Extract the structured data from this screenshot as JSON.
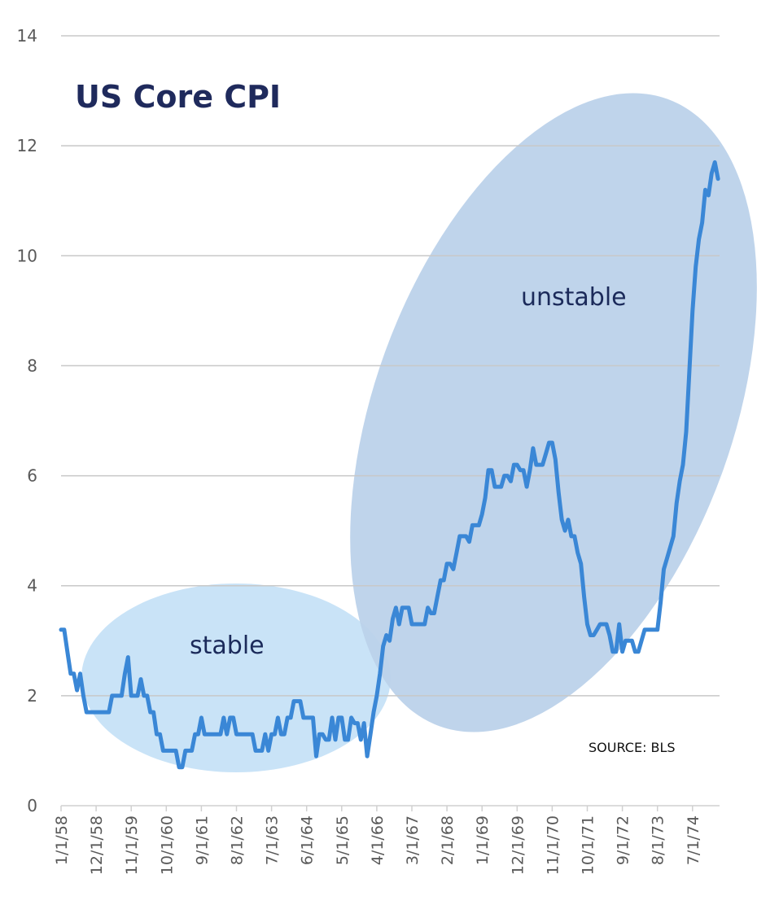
{
  "chart_data": {
    "type": "line",
    "title": "US Core CPI",
    "xlabel": "",
    "ylabel": "",
    "ylim": [
      0,
      14
    ],
    "yticks": [
      0,
      2,
      4,
      6,
      8,
      10,
      12,
      14
    ],
    "grid": true,
    "legend": "none",
    "x_start": "1/1/58",
    "x_frequency": "monthly",
    "x_tick_labels": [
      "1/1/58",
      "12/1/58",
      "11/1/59",
      "10/1/60",
      "9/1/61",
      "8/1/62",
      "7/1/63",
      "6/1/64",
      "5/1/65",
      "4/1/66",
      "3/1/67",
      "2/1/68",
      "1/1/69",
      "12/1/69",
      "11/1/70",
      "10/1/71",
      "9/1/72",
      "8/1/73",
      "7/1/74"
    ],
    "x_tick_interval_months": 11,
    "series": [
      {
        "name": "US Core CPI",
        "color": "#3a87d6",
        "values": [
          3.2,
          3.2,
          2.8,
          2.4,
          2.4,
          2.1,
          2.4,
          2.0,
          1.7,
          1.7,
          1.7,
          1.7,
          1.7,
          1.7,
          1.7,
          1.7,
          2.0,
          2.0,
          2.0,
          2.0,
          2.4,
          2.7,
          2.0,
          2.0,
          2.0,
          2.3,
          2.0,
          2.0,
          1.7,
          1.7,
          1.3,
          1.3,
          1.0,
          1.0,
          1.0,
          1.0,
          1.0,
          0.7,
          0.7,
          1.0,
          1.0,
          1.0,
          1.3,
          1.3,
          1.6,
          1.3,
          1.3,
          1.3,
          1.3,
          1.3,
          1.3,
          1.6,
          1.3,
          1.6,
          1.6,
          1.3,
          1.3,
          1.3,
          1.3,
          1.3,
          1.3,
          1.0,
          1.0,
          1.0,
          1.3,
          1.0,
          1.3,
          1.3,
          1.6,
          1.3,
          1.3,
          1.6,
          1.6,
          1.9,
          1.9,
          1.9,
          1.6,
          1.6,
          1.6,
          1.6,
          0.9,
          1.3,
          1.3,
          1.2,
          1.2,
          1.6,
          1.2,
          1.6,
          1.6,
          1.2,
          1.2,
          1.6,
          1.5,
          1.5,
          1.2,
          1.5,
          0.9,
          1.3,
          1.7,
          2.0,
          2.4,
          2.9,
          3.1,
          3.0,
          3.4,
          3.6,
          3.3,
          3.6,
          3.6,
          3.6,
          3.3,
          3.3,
          3.3,
          3.3,
          3.3,
          3.6,
          3.5,
          3.5,
          3.8,
          4.1,
          4.1,
          4.4,
          4.4,
          4.3,
          4.6,
          4.9,
          4.9,
          4.9,
          4.8,
          5.1,
          5.1,
          5.1,
          5.3,
          5.6,
          6.1,
          6.1,
          5.8,
          5.8,
          5.8,
          6.0,
          6.0,
          5.9,
          6.2,
          6.2,
          6.1,
          6.1,
          5.8,
          6.1,
          6.5,
          6.2,
          6.2,
          6.2,
          6.4,
          6.6,
          6.6,
          6.3,
          5.7,
          5.2,
          5.0,
          5.2,
          4.9,
          4.9,
          4.6,
          4.4,
          3.8,
          3.3,
          3.1,
          3.1,
          3.2,
          3.3,
          3.3,
          3.3,
          3.1,
          2.8,
          2.8,
          3.3,
          2.8,
          3.0,
          3.0,
          3.0,
          2.8,
          2.8,
          3.0,
          3.2,
          3.2,
          3.2,
          3.2,
          3.2,
          3.7,
          4.3,
          4.5,
          4.7,
          4.9,
          5.5,
          5.9,
          6.2,
          6.8,
          7.9,
          9.0,
          9.8,
          10.3,
          10.6,
          11.2,
          11.1,
          11.5,
          11.7,
          11.4
        ]
      }
    ],
    "annotations": [
      {
        "text": "stable",
        "region": "ellipse",
        "fill": "#c6e2f7",
        "covers": "1958–1966"
      },
      {
        "text": "unstable",
        "region": "ellipse",
        "fill": "#bcd2ea",
        "covers": "1966–1975"
      }
    ],
    "source_note": "SOURCE: BLS"
  }
}
